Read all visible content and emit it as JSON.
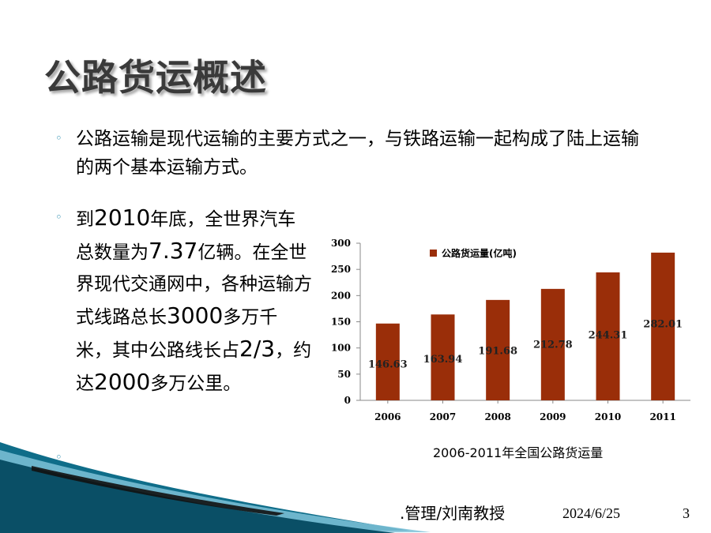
{
  "slide": {
    "title": "公路货运概述",
    "page_number": "3",
    "date": "2024/6/25",
    "author": ".管理/刘南教授"
  },
  "bullets": [
    {
      "text": "公路运输是现代运输的主要方式之一，与铁路运输一起构成了陆上运输的两个基本运输方式。"
    },
    {
      "parts": [
        "到",
        "2010",
        "年底，全世界汽车总数量为",
        "7.37",
        "亿辆。在全世界现代交通网中，各种运输方式线路总长",
        "3000",
        "多万千米，其中公路线长占",
        "2/3",
        "，约达",
        "2000",
        "多万公里。"
      ]
    }
  ],
  "chart_caption": "2006-2011年全国公路货运量",
  "theme": {
    "bar_color": "#9a2e09",
    "bullet_color": "#2e8fb0",
    "title_color": "#3a3a3a"
  },
  "chart_data": {
    "type": "bar",
    "categories": [
      "2006",
      "2007",
      "2008",
      "2009",
      "2010",
      "2011"
    ],
    "series": [
      {
        "name": "公路货运量(亿吨)",
        "values": [
          146.63,
          163.94,
          191.68,
          212.78,
          244.31,
          282.01
        ]
      }
    ],
    "data_labels": [
      "146.63",
      "163.94",
      "191.68",
      "212.78",
      "244.31",
      "282.01"
    ],
    "y_ticks": [
      "0",
      "50",
      "100",
      "150",
      "200",
      "250",
      "300"
    ],
    "ylim": [
      0,
      300
    ],
    "legend_position": "top-center",
    "grid": false
  }
}
